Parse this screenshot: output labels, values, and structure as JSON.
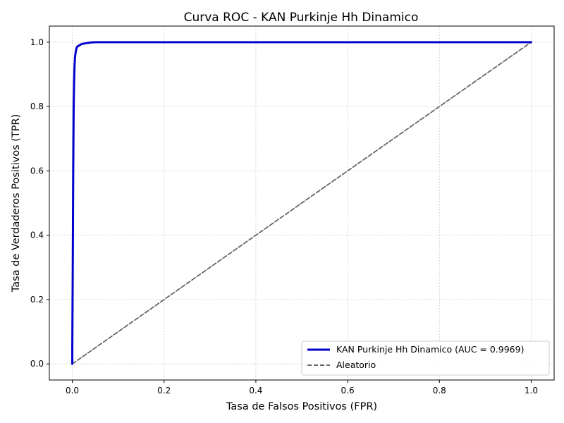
{
  "chart_data": {
    "type": "line",
    "title": "Curva ROC - KAN Purkinje Hh Dinamico",
    "xlabel": "Tasa de Falsos Positivos (FPR)",
    "ylabel": "Tasa de Verdaderos Positivos (TPR)",
    "xlim": [
      -0.05,
      1.05
    ],
    "ylim": [
      -0.05,
      1.05
    ],
    "xticks": [
      "0.0",
      "0.2",
      "0.4",
      "0.6",
      "0.8",
      "1.0"
    ],
    "yticks": [
      "0.0",
      "0.2",
      "0.4",
      "0.6",
      "0.8",
      "1.0"
    ],
    "grid": true,
    "legend_position": "lower-right",
    "series": [
      {
        "name": "KAN Purkinje Hh Dinamico (AUC = 0.9969)",
        "style": "solid",
        "color": "#0000cc",
        "x": [
          0.0,
          0.0,
          0.001,
          0.002,
          0.003,
          0.004,
          0.005,
          0.006,
          0.008,
          0.01,
          0.015,
          0.02,
          0.03,
          0.04,
          0.05,
          0.1,
          0.5,
          1.0
        ],
        "y": [
          0.0,
          0.05,
          0.3,
          0.6,
          0.8,
          0.88,
          0.93,
          0.955,
          0.975,
          0.985,
          0.99,
          0.994,
          0.997,
          0.999,
          1.0,
          1.0,
          1.0,
          1.0
        ]
      },
      {
        "name": "Aleatorio",
        "style": "dashed",
        "color": "#666666",
        "x": [
          0.0,
          1.0
        ],
        "y": [
          0.0,
          1.0
        ]
      }
    ]
  }
}
